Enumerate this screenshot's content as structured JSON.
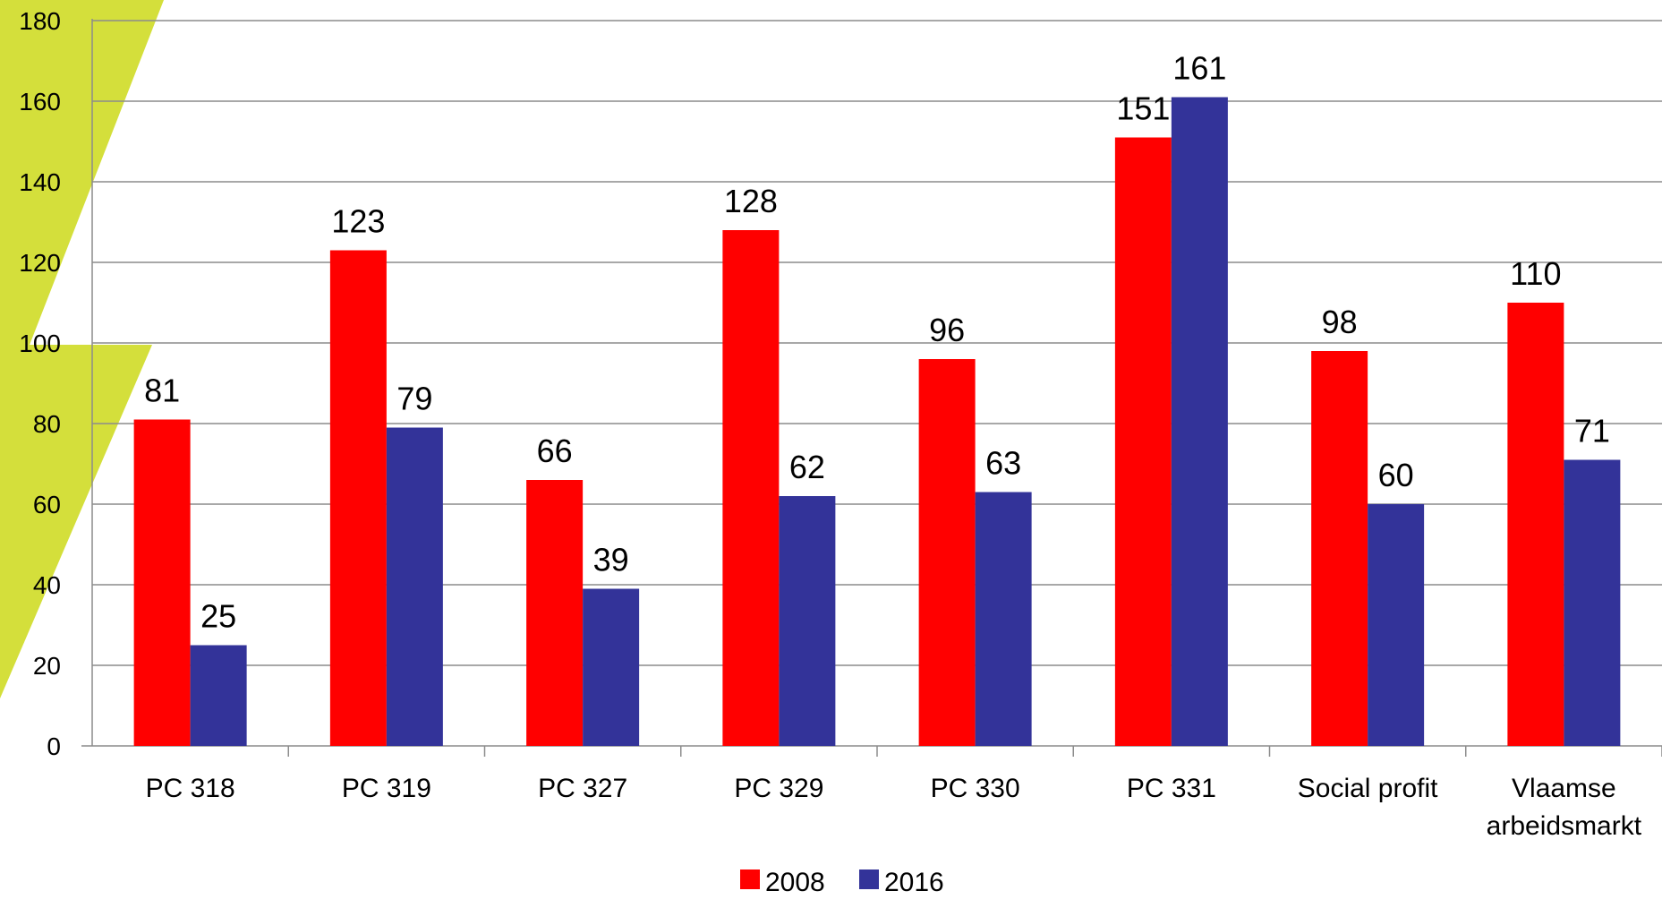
{
  "chart_data": {
    "type": "bar",
    "categories": [
      [
        "PC 318"
      ],
      [
        "PC 319"
      ],
      [
        "PC 327"
      ],
      [
        "PC 329"
      ],
      [
        "PC 330"
      ],
      [
        "PC 331"
      ],
      [
        "Social profit"
      ],
      [
        "Vlaamse",
        "arbeidsmarkt"
      ]
    ],
    "series": [
      {
        "name": "2008",
        "color": "#FF0000",
        "values": [
          81,
          123,
          66,
          128,
          96,
          151,
          98,
          110
        ]
      },
      {
        "name": "2016",
        "color": "#333399",
        "values": [
          25,
          79,
          39,
          62,
          63,
          161,
          60,
          71
        ]
      }
    ],
    "ylim": [
      0,
      180
    ],
    "yticks": [
      0,
      20,
      40,
      60,
      80,
      100,
      120,
      140,
      160,
      180
    ],
    "grid": true,
    "legend": "bottom-center",
    "data_labels": true,
    "title": "",
    "xlabel": "",
    "ylabel": "",
    "decoration": {
      "color": "#D4DF3B"
    }
  }
}
